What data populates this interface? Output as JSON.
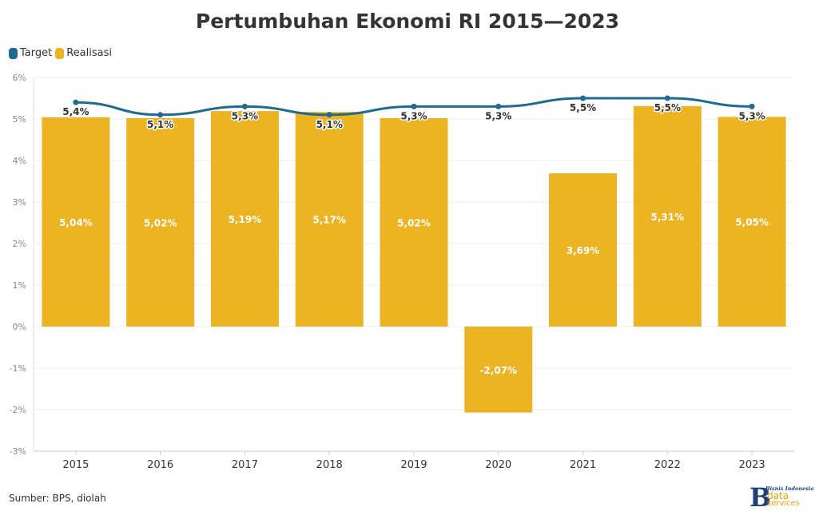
{
  "title": "Pertumbuhan Ekonomi RI 2015—2023",
  "source": "Sumber: BPS, diolah",
  "logo": {
    "top": "Bisnis Indonesia",
    "word1": "data",
    "word2": "services"
  },
  "colors": {
    "target": "#1f6a8f",
    "realisasi": "#ecb423",
    "grid": "#ececec",
    "text": "#333333"
  },
  "chart_data": {
    "type": "bar",
    "title": "Pertumbuhan Ekonomi RI 2015—2023",
    "categories": [
      "2015",
      "2016",
      "2017",
      "2018",
      "2019",
      "2020",
      "2021",
      "2022",
      "2023"
    ],
    "series": [
      {
        "name": "Target",
        "kind": "line",
        "values": [
          5.4,
          5.1,
          5.3,
          5.1,
          5.3,
          5.3,
          5.5,
          5.5,
          5.3
        ],
        "labels": [
          "5,4%",
          "5,1%",
          "5,3%",
          "5,1%",
          "5,3%",
          "5,3%",
          "5,5%",
          "5,5%",
          "5,3%"
        ]
      },
      {
        "name": "Realisasi",
        "kind": "bar",
        "values": [
          5.04,
          5.02,
          5.19,
          5.17,
          5.02,
          -2.07,
          3.69,
          5.31,
          5.05
        ],
        "labels": [
          "5,04%",
          "5,02%",
          "5,19%",
          "5,17%",
          "5,02%",
          "-2,07%",
          "3,69%",
          "5,31%",
          "5,05%"
        ]
      }
    ],
    "ylim": [
      -3,
      6
    ],
    "yticks": [
      6,
      5,
      4,
      3,
      2,
      1,
      0,
      -1,
      -2,
      -3
    ],
    "ytick_labels": [
      "6%",
      "5%",
      "4%",
      "3%",
      "2%",
      "1%",
      "0%",
      "-1%",
      "-2%",
      "-3%"
    ],
    "xlabel": "",
    "ylabel": "",
    "legend": "top-left",
    "grid": true
  }
}
